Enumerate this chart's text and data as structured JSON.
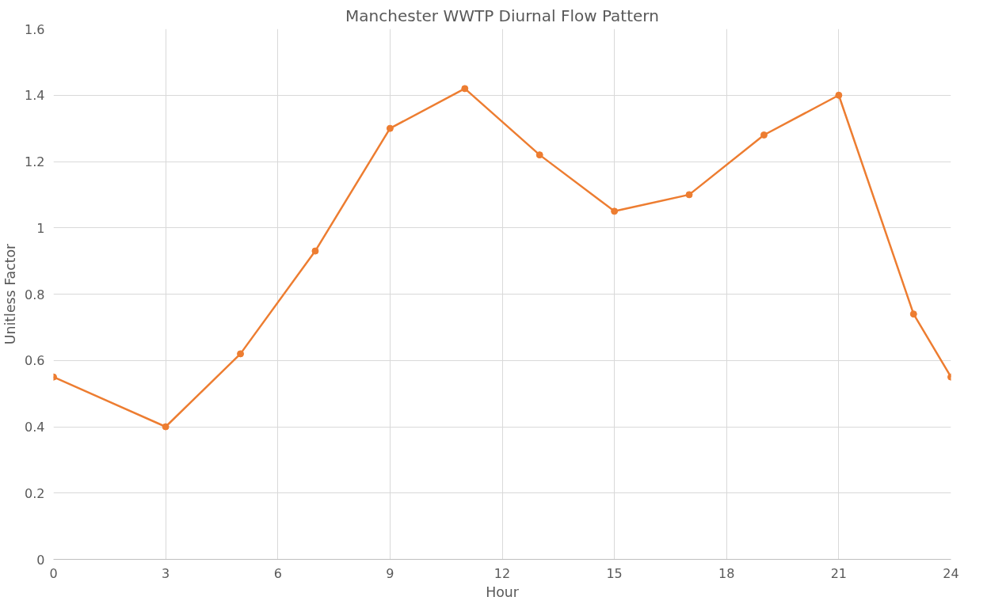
{
  "chart_data": {
    "type": "line",
    "title": "Manchester WWTP Diurnal Flow Pattern",
    "xlabel": "Hour",
    "ylabel": "Unitless Factor",
    "x": [
      0,
      3,
      5,
      7,
      9,
      11,
      13,
      15,
      17,
      19,
      21,
      23,
      24
    ],
    "series": [
      {
        "color": "#ed7d31",
        "values": [
          0.55,
          0.4,
          0.62,
          0.93,
          1.3,
          1.42,
          1.22,
          1.05,
          1.1,
          1.28,
          1.4,
          0.74,
          0.55
        ]
      }
    ],
    "xlim": [
      0,
      24
    ],
    "xticks": [
      0,
      3,
      6,
      9,
      12,
      15,
      18,
      21,
      24
    ],
    "ylim": [
      0,
      1.6
    ],
    "yticks": [
      0,
      {
        "value": 0.2,
        "label": "0.2"
      },
      {
        "value": 0.4,
        "label": "0.4"
      },
      {
        "value": 0.6,
        "label": "0.6"
      },
      {
        "value": 0.8,
        "label": "0.8"
      },
      1,
      {
        "value": 1.2,
        "label": "1.2"
      },
      {
        "value": 1.4,
        "label": "1.4"
      },
      {
        "value": 1.6,
        "label": "1.6"
      }
    ],
    "grid": true,
    "marker": "circle",
    "line_style": "solid"
  }
}
